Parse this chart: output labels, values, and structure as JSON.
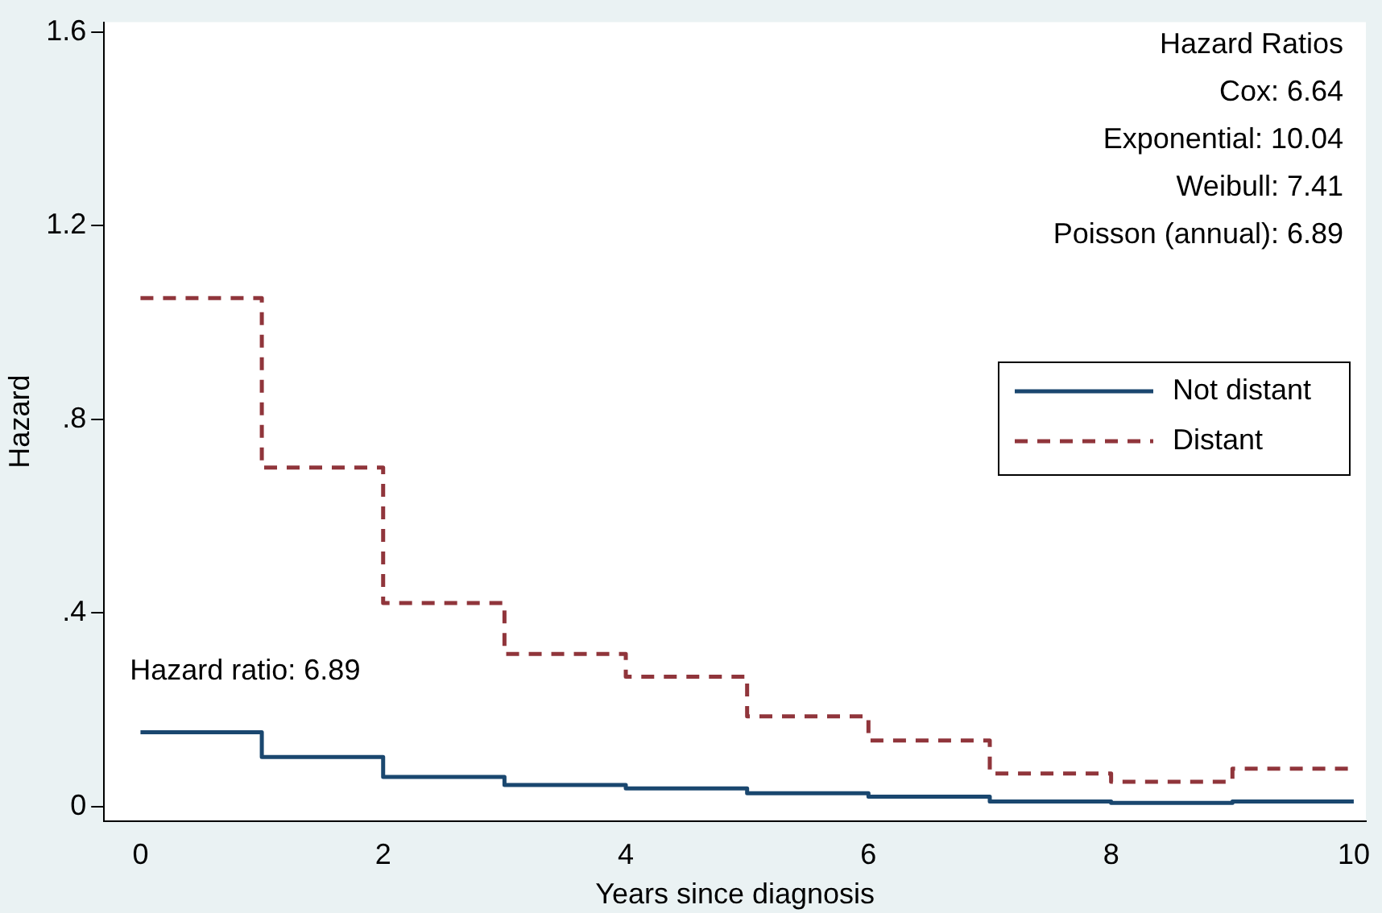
{
  "chart_data": {
    "type": "step",
    "xlabel": "Years since diagnosis",
    "ylabel": "Hazard",
    "x": [
      0,
      1,
      2,
      3,
      4,
      5,
      6,
      7,
      8,
      9,
      10
    ],
    "series": [
      {
        "name": "Not distant",
        "color": "#1a476f",
        "line_style": "solid",
        "values": [
          0.153,
          0.102,
          0.061,
          0.044,
          0.037,
          0.027,
          0.02,
          0.01,
          0.007,
          0.01,
          0.01
        ]
      },
      {
        "name": "Distant",
        "color": "#90353b",
        "line_style": "dashed",
        "values": [
          1.05,
          0.7,
          0.42,
          0.315,
          0.268,
          0.186,
          0.136,
          0.068,
          0.051,
          0.078,
          0.078
        ]
      }
    ],
    "xlim": [
      -0.3,
      10.1
    ],
    "xticks": [
      0,
      2,
      4,
      6,
      8,
      10
    ],
    "ylim": [
      -0.03,
      1.62
    ],
    "yticks": [
      0,
      {
        "value": 0.4,
        "label": ".4"
      },
      {
        "value": 0.8,
        "label": ".8"
      },
      1.2,
      1.6
    ],
    "grid": false,
    "legend": "right",
    "marker": "none",
    "annotations": [
      "Hazard Ratios",
      "Cox: 6.64",
      "Exponential: 10.04",
      "Weibull: 7.41",
      "Poisson (annual): 6.89",
      "Hazard ratio: 6.89"
    ]
  }
}
